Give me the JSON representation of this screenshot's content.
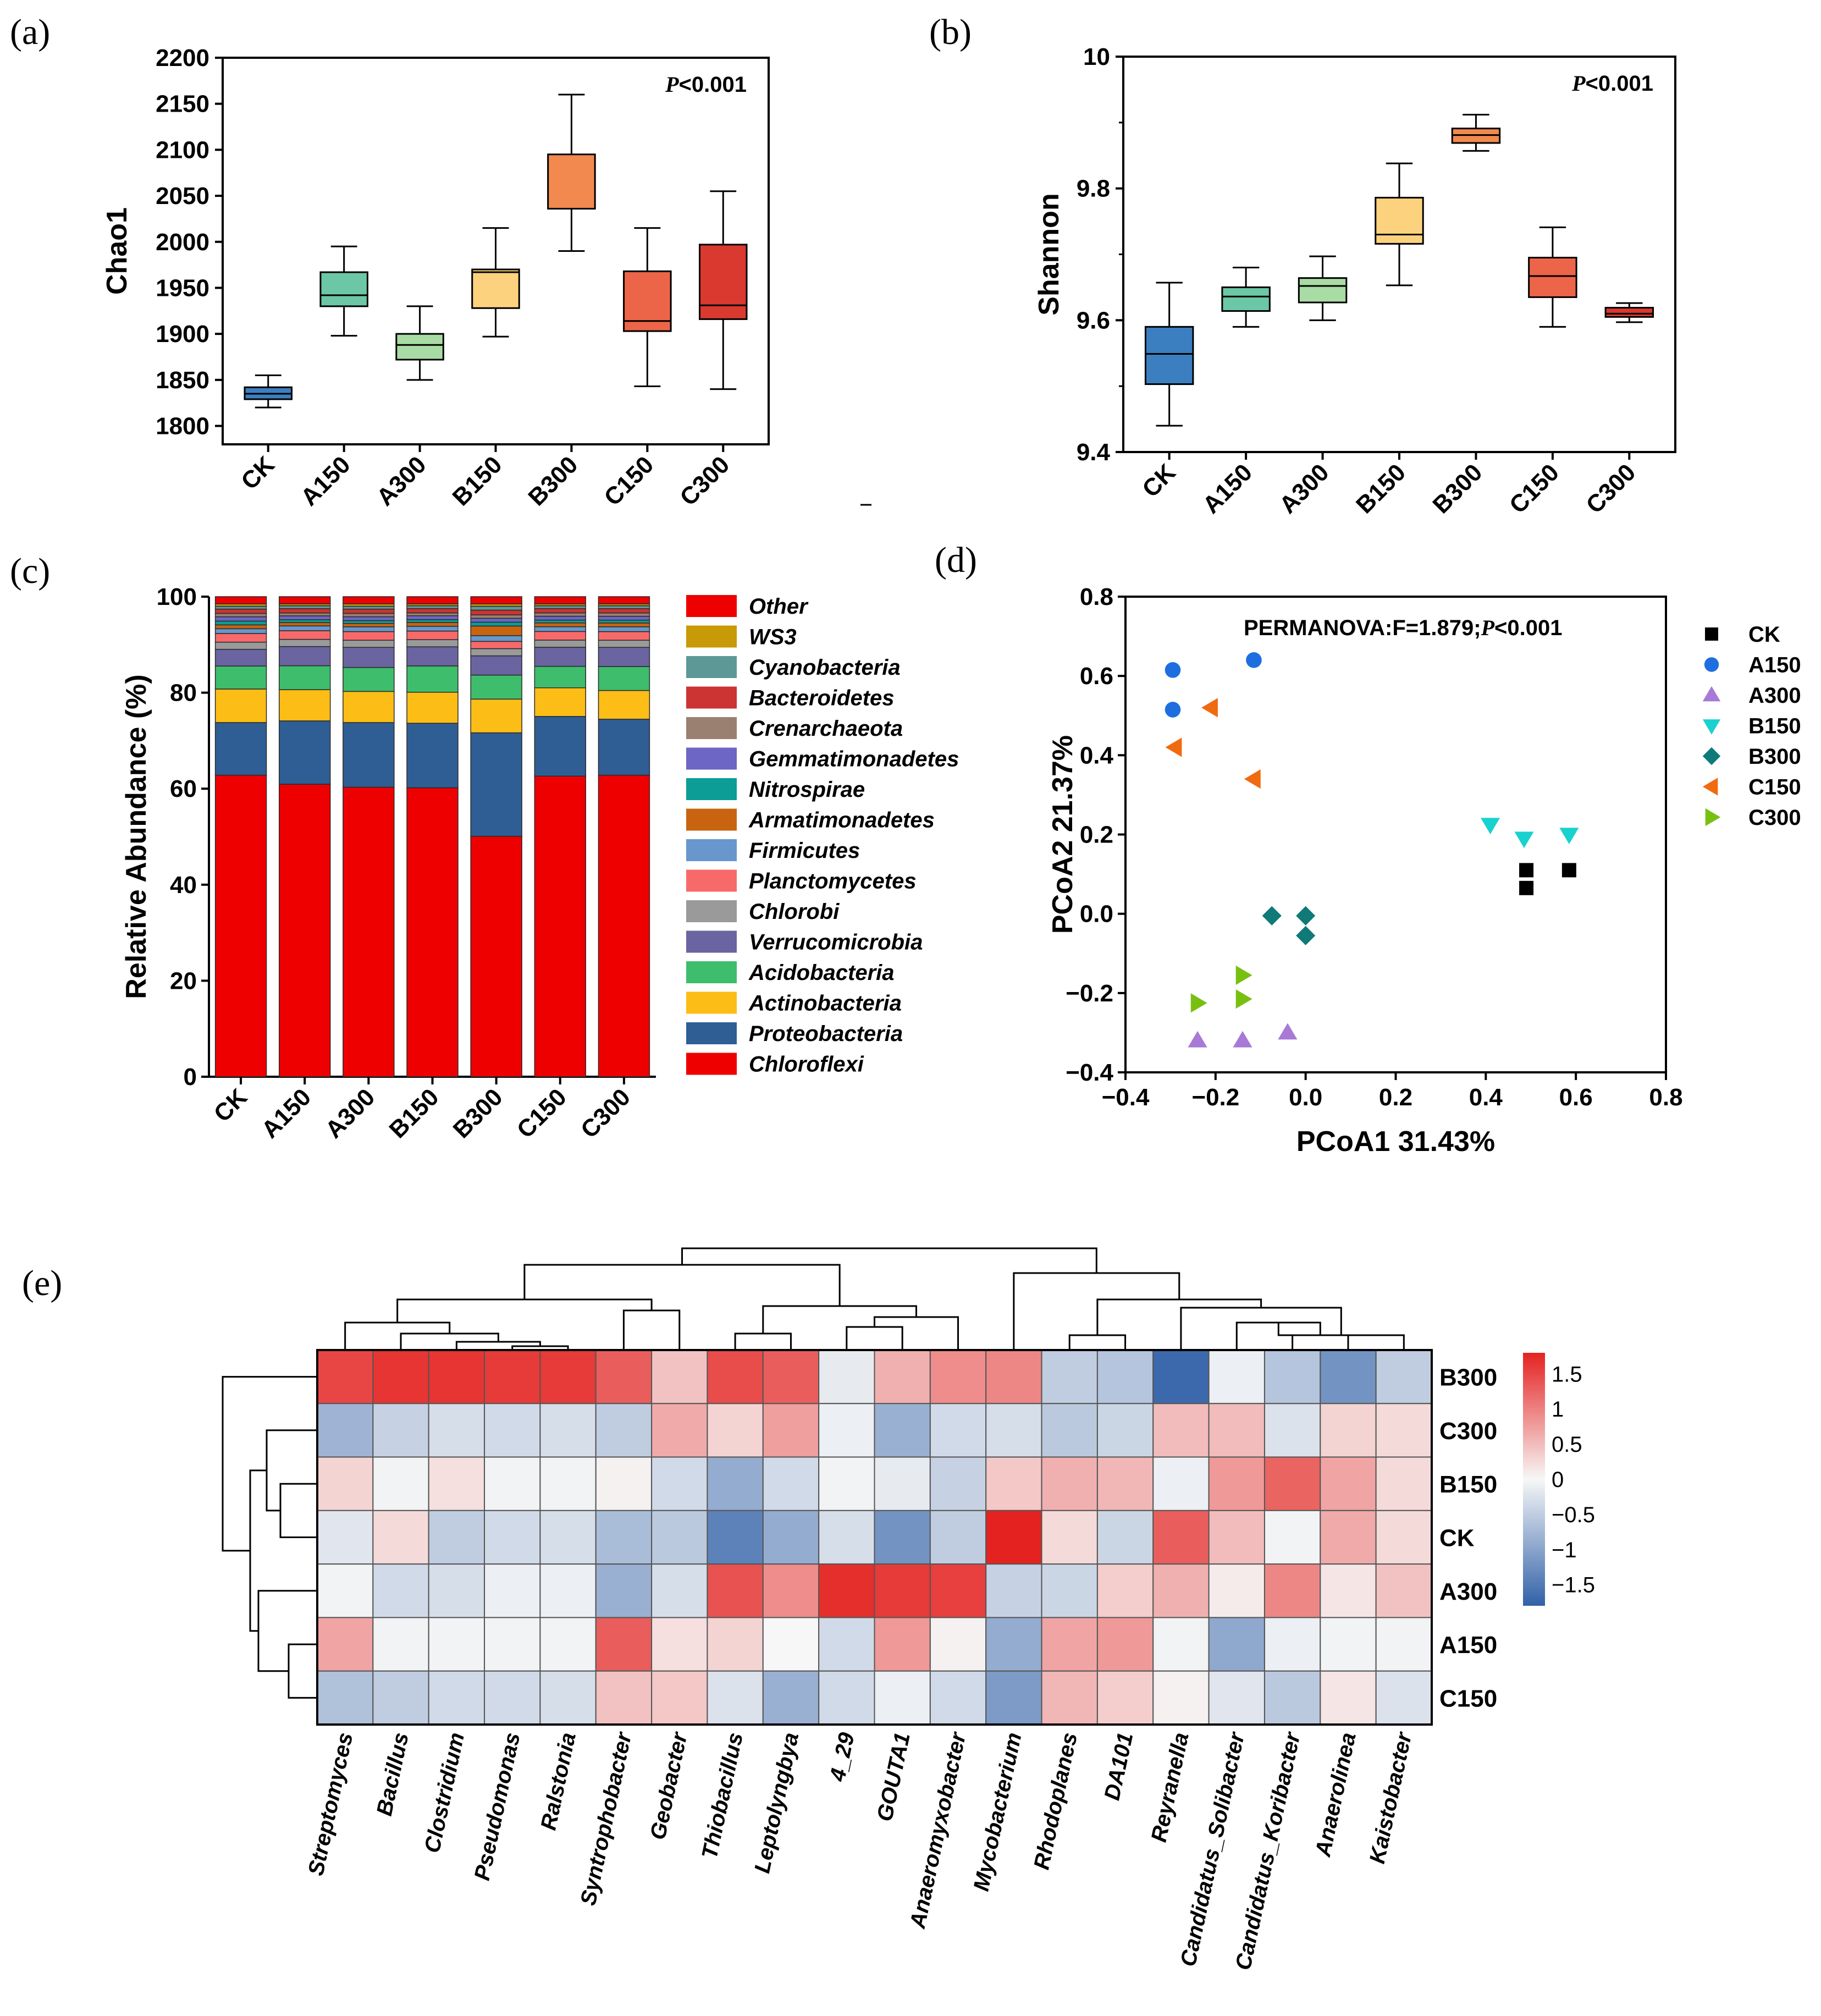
{
  "panel_labels": [
    "(a)",
    "(b)",
    "(c)",
    "(d)",
    "(e)"
  ],
  "colors": {
    "CK": "#3b7fc0",
    "A150": "#6cc7a6",
    "A300": "#a8dca4",
    "B150": "#fdd27e",
    "B300": "#f2894e",
    "C150": "#ec6548",
    "C300": "#d9392f"
  },
  "chart_data": [
    {
      "id": "a",
      "type": "box",
      "categories": [
        "CK",
        "A150",
        "A300",
        "B150",
        "B300",
        "C150",
        "C300"
      ],
      "ylabel": "Chao1",
      "ylim": [
        1780,
        2200
      ],
      "yticks": [
        1800,
        1850,
        1900,
        1950,
        2000,
        2050,
        2100,
        2150,
        2200
      ],
      "annotation": {
        "p": "P",
        "rest": "<0.001"
      },
      "boxes": [
        {
          "min": 1820,
          "q1": 1829,
          "median": 1835,
          "q3": 1842,
          "max": 1855
        },
        {
          "min": 1898,
          "q1": 1930,
          "median": 1942,
          "q3": 1967,
          "max": 1995
        },
        {
          "min": 1850,
          "q1": 1872,
          "median": 1888,
          "q3": 1900,
          "max": 1930
        },
        {
          "min": 1897,
          "q1": 1928,
          "median": 1967,
          "q3": 1970,
          "max": 2015
        },
        {
          "min": 1990,
          "q1": 2036,
          "median": 2036,
          "q3": 2095,
          "max": 2160
        },
        {
          "min": 1843,
          "q1": 1903,
          "median": 1914,
          "q3": 1968,
          "max": 2015
        },
        {
          "min": 1840,
          "q1": 1916,
          "median": 1931,
          "q3": 1997,
          "max": 2055
        }
      ]
    },
    {
      "id": "b",
      "type": "box",
      "categories": [
        "CK",
        "A150",
        "A300",
        "B150",
        "B300",
        "C150",
        "C300"
      ],
      "ylabel": "Shannon",
      "ylim": [
        9.4,
        10.0
      ],
      "yticks": [
        9.4,
        9.6,
        9.8,
        10.0
      ],
      "annotation": {
        "p": "P",
        "rest": "<0.001"
      },
      "boxes": [
        {
          "min": 9.44,
          "q1": 9.503,
          "median": 9.549,
          "q3": 9.59,
          "max": 9.657
        },
        {
          "min": 9.59,
          "q1": 9.614,
          "median": 9.636,
          "q3": 9.65,
          "max": 9.68
        },
        {
          "min": 9.6,
          "q1": 9.627,
          "median": 9.652,
          "q3": 9.664,
          "max": 9.697
        },
        {
          "min": 9.653,
          "q1": 9.716,
          "median": 9.73,
          "q3": 9.786,
          "max": 9.838
        },
        {
          "min": 9.857,
          "q1": 9.869,
          "median": 9.881,
          "q3": 9.891,
          "max": 9.912
        },
        {
          "min": 9.59,
          "q1": 9.635,
          "median": 9.667,
          "q3": 9.695,
          "max": 9.741
        },
        {
          "min": 9.597,
          "q1": 9.605,
          "median": 9.61,
          "q3": 9.619,
          "max": 9.626
        }
      ]
    },
    {
      "id": "c",
      "type": "stacked_bar",
      "categories": [
        "CK",
        "A150",
        "A300",
        "B150",
        "B300",
        "C150",
        "C300"
      ],
      "ylabel": "Relative Abundance (%)",
      "ylim": [
        0,
        100
      ],
      "yticks": [
        0,
        20,
        40,
        60,
        80,
        100
      ],
      "series": [
        {
          "name": "Chloroflexi",
          "color": "#ee0000",
          "values": [
            63,
            61,
            60.5,
            60.5,
            50,
            63,
            63
          ]
        },
        {
          "name": "Proteobacteria",
          "color": "#2f5e95",
          "values": [
            11,
            13.2,
            13.5,
            13.5,
            21.5,
            12.5,
            11.7
          ]
        },
        {
          "name": "Actinobacteria",
          "color": "#fbbd16",
          "values": [
            7,
            6.5,
            6.5,
            6.5,
            7,
            6,
            6
          ]
        },
        {
          "name": "Acidobacteria",
          "color": "#3ebd6c",
          "values": [
            4.8,
            5,
            5,
            5.5,
            5,
            4.5,
            5
          ]
        },
        {
          "name": "Verrucomicrobia",
          "color": "#6a64a0",
          "values": [
            3.5,
            4,
            4.2,
            4,
            4,
            4,
            4
          ]
        },
        {
          "name": "Chlorobi",
          "color": "#9a9a9a",
          "values": [
            1.5,
            1.5,
            1.5,
            1.5,
            1.5,
            1.5,
            1.5
          ]
        },
        {
          "name": "Planctomycetes",
          "color": "#f86a6a",
          "values": [
            1.8,
            1.8,
            1.8,
            1.8,
            1.5,
            1.8,
            1.8
          ]
        },
        {
          "name": "Firmicutes",
          "color": "#6797cc",
          "values": [
            1,
            1,
            1,
            1,
            1.2,
            1,
            1
          ]
        },
        {
          "name": "Armatimonadetes",
          "color": "#c86410",
          "values": [
            0.8,
            0.7,
            0.7,
            0.8,
            2,
            0.8,
            0.8
          ]
        },
        {
          "name": "Nitrospirae",
          "color": "#0c9d96",
          "values": [
            0.8,
            0.6,
            0.6,
            0.6,
            0.8,
            0.6,
            0.6
          ]
        },
        {
          "name": "Gemmatimonadetes",
          "color": "#6e66c4",
          "values": [
            0.9,
            0.8,
            0.8,
            0.8,
            0.8,
            0.8,
            0.8
          ]
        },
        {
          "name": "Crenarchaeota",
          "color": "#9a8070",
          "values": [
            0.7,
            0.6,
            0.7,
            0.6,
            0.7,
            0.7,
            0.7
          ]
        },
        {
          "name": "Bacteroidetes",
          "color": "#cc3333",
          "values": [
            0.9,
            0.9,
            0.9,
            0.9,
            1,
            0.9,
            0.9
          ]
        },
        {
          "name": "Cyanobacteria",
          "color": "#5e9896",
          "values": [
            0.6,
            0.6,
            0.6,
            0.6,
            0.8,
            0.6,
            0.6
          ]
        },
        {
          "name": "WS3",
          "color": "#c89a08",
          "values": [
            0.5,
            0.4,
            0.5,
            0.4,
            0.5,
            0.4,
            0.4
          ]
        },
        {
          "name": "Other",
          "color": "#ee0000",
          "values": [
            1.5,
            1.5,
            1.5,
            1.5,
            1.5,
            1.5,
            1.5
          ]
        }
      ]
    },
    {
      "id": "d",
      "type": "scatter",
      "xlabel": "PCoA1 31.43%",
      "ylabel": "PCoA2 21.37%",
      "xlim": [
        -0.4,
        0.8
      ],
      "ylim": [
        -0.4,
        0.8
      ],
      "xticks": [
        -0.4,
        -0.2,
        0.0,
        0.2,
        0.4,
        0.6,
        0.8
      ],
      "yticks": [
        -0.4,
        -0.2,
        0.0,
        0.2,
        0.4,
        0.6,
        0.8
      ],
      "xtick_labels": [
        "−0.4",
        "−0.2",
        "0.0",
        "0.2",
        "0.4",
        "0.6",
        "0.8"
      ],
      "ytick_labels": [
        "−0.4",
        "−0.2",
        "0.0",
        "0.2",
        "0.4",
        "0.6",
        "0.8"
      ],
      "annotation": {
        "pre": "PERMANOVA:F=1.879;",
        "p": "P",
        "rest": "<0.001"
      },
      "series": [
        {
          "name": "CK",
          "marker": "square",
          "color": "#000000",
          "points": [
            [
              0.49,
              0.11
            ],
            [
              0.49,
              0.065
            ],
            [
              0.585,
              0.11
            ]
          ]
        },
        {
          "name": "A150",
          "marker": "circle",
          "color": "#1f6ee0",
          "points": [
            [
              -0.295,
              0.615
            ],
            [
              -0.115,
              0.64
            ],
            [
              -0.295,
              0.515
            ]
          ]
        },
        {
          "name": "A300",
          "marker": "triangle-up",
          "color": "#a879d6",
          "points": [
            [
              -0.24,
              -0.32
            ],
            [
              -0.14,
              -0.32
            ],
            [
              -0.04,
              -0.3
            ]
          ]
        },
        {
          "name": "B150",
          "marker": "triangle-down",
          "color": "#19d2cf",
          "points": [
            [
              0.41,
              0.225
            ],
            [
              0.485,
              0.19
            ],
            [
              0.585,
              0.2
            ]
          ]
        },
        {
          "name": "B300",
          "marker": "diamond",
          "color": "#0f7a78",
          "points": [
            [
              -0.075,
              -0.005
            ],
            [
              0.0,
              -0.005
            ],
            [
              0.0,
              -0.055
            ]
          ]
        },
        {
          "name": "C150",
          "marker": "triangle-left",
          "color": "#f06a10",
          "points": [
            [
              -0.21,
              0.52
            ],
            [
              -0.29,
              0.42
            ],
            [
              -0.115,
              0.34
            ]
          ]
        },
        {
          "name": "C300",
          "marker": "triangle-right",
          "color": "#78c010",
          "points": [
            [
              -0.14,
              -0.155
            ],
            [
              -0.24,
              -0.225
            ],
            [
              -0.14,
              -0.215
            ]
          ]
        }
      ]
    },
    {
      "id": "e",
      "type": "heatmap",
      "rows": [
        "B300",
        "C300",
        "B150",
        "CK",
        "A300",
        "A150",
        "C150"
      ],
      "columns": [
        "Streptomyces",
        "Bacillus",
        "Clostridium",
        "Pseudomonas",
        "Ralstonia",
        "Syntrophobacter",
        "Geobacter",
        "Thiobacillus",
        "Leptolyngbya",
        "4_29",
        "GOUTA1",
        "Anaeromyxobacter",
        "Mycobacterium",
        "Rhodoplanes",
        "DA101",
        "Reyranella",
        "Candidatus_Solibacter",
        "Candidatus_Koribacter",
        "Anaerolinea",
        "Kaistobacter"
      ],
      "values": [
        [
          1.5,
          1.65,
          1.65,
          1.6,
          1.6,
          1.3,
          0.45,
          1.45,
          1.3,
          -0.15,
          0.6,
          0.9,
          0.95,
          -0.5,
          -0.6,
          -1.7,
          -0.1,
          -0.6,
          -1.2,
          -0.5
        ],
        [
          -0.8,
          -0.45,
          -0.3,
          -0.35,
          -0.3,
          -0.5,
          0.65,
          0.3,
          0.75,
          -0.1,
          -0.85,
          -0.35,
          -0.3,
          -0.55,
          -0.4,
          0.5,
          0.5,
          -0.25,
          0.3,
          0.25
        ],
        [
          0.3,
          -0.05,
          0.2,
          -0.05,
          -0.05,
          0.05,
          -0.35,
          -0.9,
          -0.35,
          -0.05,
          -0.15,
          -0.45,
          0.4,
          0.6,
          0.55,
          -0.1,
          0.8,
          1.25,
          0.7,
          0.25
        ],
        [
          -0.2,
          0.25,
          -0.5,
          -0.35,
          -0.3,
          -0.7,
          -0.55,
          -1.4,
          -0.9,
          -0.3,
          -1.2,
          -0.5,
          1.8,
          0.25,
          -0.4,
          1.3,
          0.5,
          -0.05,
          0.65,
          0.25
        ],
        [
          -0.05,
          -0.35,
          -0.3,
          -0.1,
          -0.1,
          -0.85,
          -0.3,
          1.4,
          0.9,
          1.7,
          1.6,
          1.55,
          -0.45,
          -0.4,
          0.35,
          0.6,
          0.1,
          0.95,
          0.15,
          0.45
        ],
        [
          0.7,
          -0.05,
          -0.05,
          -0.05,
          -0.05,
          1.3,
          0.2,
          0.3,
          0.0,
          -0.35,
          0.8,
          0.05,
          -0.9,
          0.7,
          0.8,
          -0.05,
          -0.95,
          -0.1,
          -0.05,
          -0.05
        ],
        [
          -0.65,
          -0.5,
          -0.35,
          -0.35,
          -0.3,
          0.45,
          0.4,
          -0.25,
          -0.85,
          -0.35,
          -0.1,
          -0.35,
          -1.1,
          0.55,
          0.35,
          0.05,
          -0.2,
          -0.55,
          0.15,
          -0.25
        ]
      ],
      "colorbar": {
        "min": -1.8,
        "max": 1.8,
        "ticks": [
          "1.5",
          "1",
          "0.5",
          "0",
          "−0.5",
          "−1",
          "−1.5"
        ]
      }
    }
  ]
}
